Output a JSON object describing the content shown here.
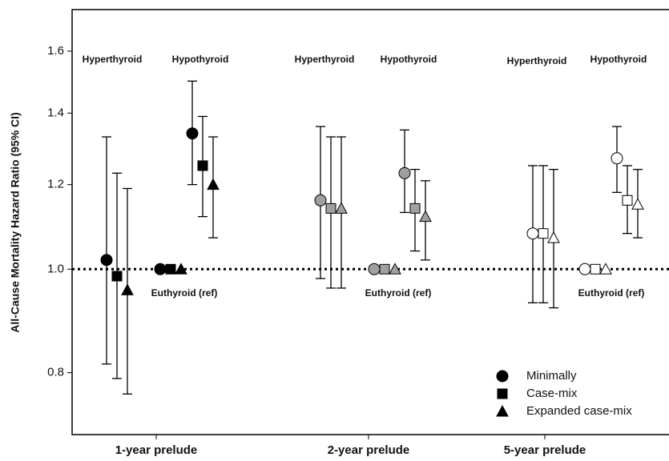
{
  "chart_data": {
    "type": "forest",
    "y_label": "All-Cause Mortality Hazard Ratio (95% CI)",
    "log_scale": true,
    "ylim": [
      0.7,
      1.75
    ],
    "yticks": [
      {
        "value": 0.8,
        "label": "0.8"
      },
      {
        "value": 1.0,
        "label": "1.0"
      },
      {
        "value": 1.2,
        "label": "1.2"
      },
      {
        "value": 1.4,
        "label": "1.4"
      },
      {
        "value": 1.6,
        "label": "1.6"
      }
    ],
    "reference_line": 1,
    "groups": [
      "1-year prelude",
      "2-year prelude",
      "5-year prelude"
    ],
    "subgroups": [
      "Hyperthyroid",
      "Euthyroid (ref)",
      "Hypothyroid"
    ],
    "marker_fill": [
      "#000000",
      "#a0a0a0",
      "#ffffff"
    ],
    "series": [
      {
        "name": "Minimally",
        "color": "#000000",
        "marker": "circle",
        "values": [
          1.02,
          1,
          1.34,
          1.16,
          1,
          1.23,
          1.08,
          1,
          1.27
        ],
        "lower": [
          0.815,
          null,
          1.2,
          0.98,
          null,
          1.13,
          0.93,
          null,
          1.18
        ],
        "upper": [
          1.33,
          null,
          1.5,
          1.36,
          null,
          1.35,
          1.25,
          null,
          1.36
        ]
      },
      {
        "name": "Case-mix",
        "color": "#000000",
        "marker": "square",
        "values": [
          0.985,
          1,
          1.25,
          1.14,
          1,
          1.14,
          1.08,
          1,
          1.16
        ],
        "lower": [
          0.79,
          null,
          1.12,
          0.96,
          null,
          1.04,
          0.93,
          null,
          1.08
        ],
        "upper": [
          1.23,
          null,
          1.39,
          1.33,
          null,
          1.24,
          1.25,
          null,
          1.25
        ]
      },
      {
        "name": "Expanded case-mix",
        "color": "#000000",
        "marker": "triangle",
        "values": [
          0.956,
          1,
          1.2,
          1.14,
          1,
          1.12,
          1.07,
          1,
          1.15
        ],
        "lower": [
          0.764,
          null,
          1.07,
          0.96,
          null,
          1.02,
          0.92,
          null,
          1.07
        ],
        "upper": [
          1.19,
          null,
          1.33,
          1.33,
          null,
          1.21,
          1.24,
          null,
          1.24
        ]
      }
    ]
  }
}
